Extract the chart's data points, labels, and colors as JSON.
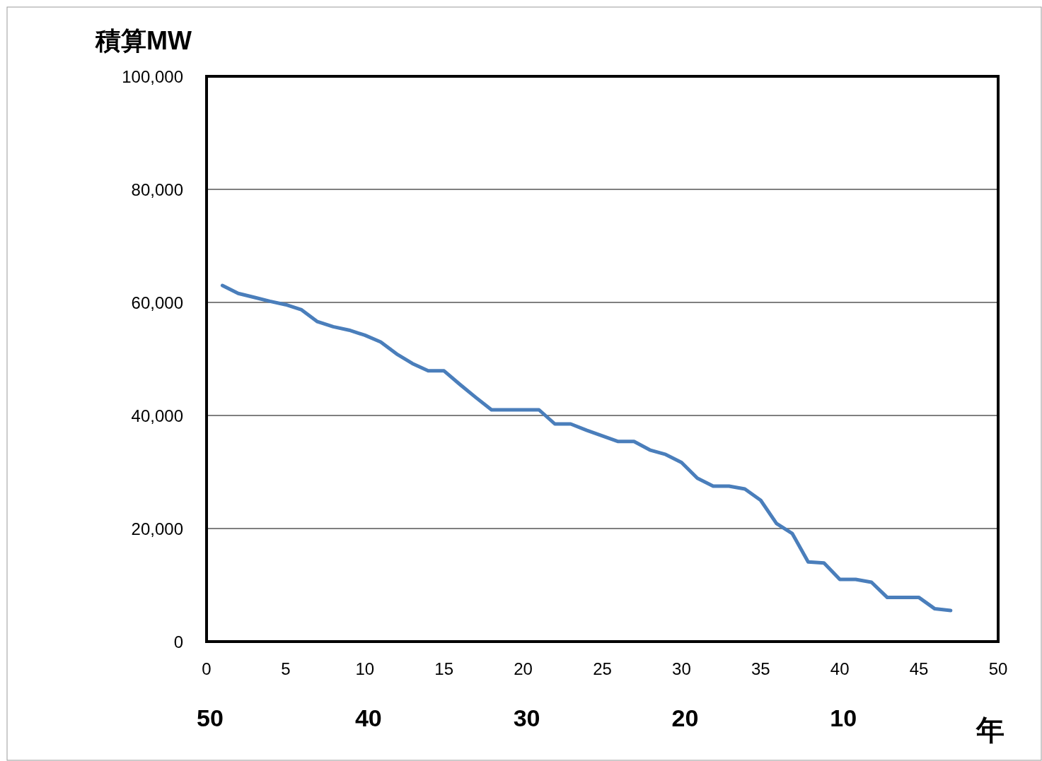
{
  "chart_data": {
    "type": "line",
    "ylabel": "積算MW",
    "x2label": "年",
    "x": [
      1,
      2,
      3,
      4,
      5,
      6,
      7,
      8,
      9,
      10,
      11,
      12,
      13,
      14,
      15,
      16,
      17,
      18,
      19,
      20,
      21,
      22,
      23,
      24,
      25,
      26,
      27,
      28,
      29,
      30,
      31,
      32,
      33,
      34,
      35,
      36,
      37,
      38,
      39,
      40,
      41,
      42,
      43,
      44,
      45,
      46,
      47
    ],
    "series": [
      {
        "color": "#4a7ebb",
        "values": [
          63000,
          61600,
          60900,
          60200,
          59600,
          58700,
          56600,
          55700,
          55100,
          54200,
          53000,
          50900,
          49200,
          47900,
          47900,
          45500,
          43200,
          41000,
          41000,
          41000,
          41000,
          38500,
          38500,
          37400,
          36400,
          35400,
          35400,
          33900,
          33100,
          31700,
          28900,
          27500,
          27500,
          27000,
          25000,
          20900,
          19100,
          14100,
          13900,
          11000,
          11000,
          10500,
          7800,
          7800,
          7800,
          5800,
          5500
        ]
      }
    ],
    "xlim": [
      0,
      50
    ],
    "xticks": [
      0,
      5,
      10,
      15,
      20,
      25,
      30,
      35,
      40,
      45,
      50
    ],
    "ylim": [
      0,
      100000
    ],
    "yticks": [
      0,
      {
        "value": 20000,
        "label": "20,000"
      },
      {
        "value": 40000,
        "label": "40,000"
      },
      {
        "value": 60000,
        "label": "60,000"
      },
      {
        "value": 80000,
        "label": "80,000"
      },
      {
        "value": 100000,
        "label": "100,000"
      }
    ],
    "x2lim": [
      50,
      0
    ],
    "x2ticks": [
      50,
      40,
      30,
      20,
      10
    ],
    "grid": "y",
    "marker": "none",
    "line_style": "solid"
  }
}
